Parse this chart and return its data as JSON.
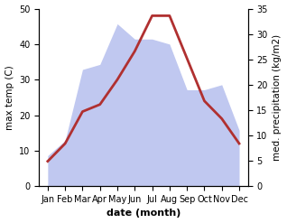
{
  "months": [
    "Jan",
    "Feb",
    "Mar",
    "Apr",
    "May",
    "Jun",
    "Jul",
    "Aug",
    "Sep",
    "Oct",
    "Nov",
    "Dec"
  ],
  "temperature": [
    7,
    12,
    21,
    23,
    30,
    38,
    48,
    48,
    36,
    24,
    19,
    12
  ],
  "precipitation": [
    6,
    9,
    23,
    24,
    32,
    29,
    29,
    28,
    19,
    19,
    20,
    11
  ],
  "temp_color": "#b03030",
  "precip_fill_color": "#c0c8f0",
  "left_ylim": [
    0,
    50
  ],
  "right_ylim": [
    0,
    35
  ],
  "left_yticks": [
    0,
    10,
    20,
    30,
    40,
    50
  ],
  "right_yticks": [
    0,
    5,
    10,
    15,
    20,
    25,
    30,
    35
  ],
  "xlabel": "date (month)",
  "ylabel_left": "max temp (C)",
  "ylabel_right": "med. precipitation (kg/m2)",
  "figsize": [
    3.18,
    2.47
  ],
  "dpi": 100
}
